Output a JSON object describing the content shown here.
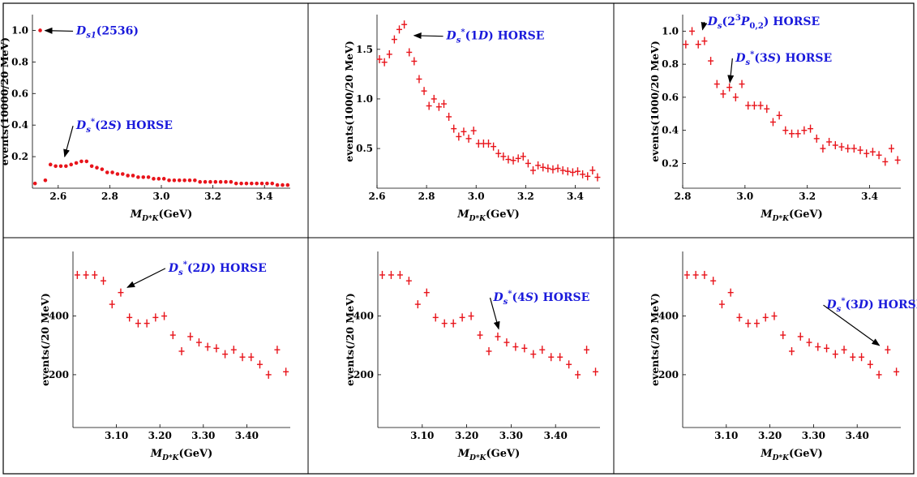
{
  "chart_data": [
    {
      "type": "scatter",
      "xlabel_main": "M",
      "xlabel_sub": "D*K",
      "xlabel_unit": "(GeV)",
      "ylabel": "events(10000/20 MeV)",
      "xlim": [
        2.5,
        3.5
      ],
      "ylim": [
        0,
        1.1
      ],
      "x_ticks": [
        "2.6",
        "2.8",
        "3.0",
        "3.2",
        "3.4"
      ],
      "y_ticks": [
        "0.2",
        "0.4",
        "0.6",
        "0.8",
        "1.0"
      ],
      "marker": "dot",
      "color": "#e8141b",
      "x": [
        2.51,
        2.53,
        2.55,
        2.57,
        2.59,
        2.61,
        2.63,
        2.65,
        2.67,
        2.69,
        2.71,
        2.73,
        2.75,
        2.77,
        2.79,
        2.81,
        2.83,
        2.85,
        2.87,
        2.89,
        2.91,
        2.93,
        2.95,
        2.97,
        2.99,
        3.01,
        3.03,
        3.05,
        3.07,
        3.09,
        3.11,
        3.13,
        3.15,
        3.17,
        3.19,
        3.21,
        3.23,
        3.25,
        3.27,
        3.29,
        3.31,
        3.33,
        3.35,
        3.37,
        3.39,
        3.41,
        3.43,
        3.45,
        3.47,
        3.49
      ],
      "y": [
        0.03,
        1.0,
        0.05,
        0.15,
        0.14,
        0.14,
        0.14,
        0.15,
        0.16,
        0.17,
        0.17,
        0.14,
        0.13,
        0.12,
        0.1,
        0.1,
        0.09,
        0.09,
        0.08,
        0.08,
        0.07,
        0.07,
        0.07,
        0.06,
        0.06,
        0.06,
        0.05,
        0.05,
        0.05,
        0.05,
        0.05,
        0.05,
        0.04,
        0.04,
        0.04,
        0.04,
        0.04,
        0.04,
        0.04,
        0.03,
        0.03,
        0.03,
        0.03,
        0.03,
        0.03,
        0.03,
        0.03,
        0.02,
        0.02,
        0.02
      ],
      "annotations": [
        {
          "parts": [
            {
              "t": "D",
              "i": true
            },
            {
              "t": "s1",
              "sub": true,
              "i": true
            },
            {
              "t": "(2536)"
            }
          ],
          "point": [
            2.53,
            1.0
          ],
          "text_at": [
            2.67,
            1.0
          ]
        },
        {
          "parts": [
            {
              "t": "D",
              "i": true
            },
            {
              "t": "s",
              "sub": true,
              "i": true
            },
            {
              "t": "*",
              "sup": true
            },
            {
              "t": "(2"
            },
            {
              "t": "S",
              "i": true
            },
            {
              "t": ") HORSE"
            }
          ],
          "point": [
            2.62,
            0.17
          ],
          "text_at": [
            2.67,
            0.4
          ]
        }
      ]
    },
    {
      "type": "scatter",
      "xlabel_main": "M",
      "xlabel_sub": "D*K",
      "xlabel_unit": "(GeV)",
      "ylabel": "events(1000/20 MeV)",
      "xlim": [
        2.6,
        3.5
      ],
      "ylim": [
        0.1,
        1.85
      ],
      "x_ticks": [
        "2.6",
        "2.8",
        "3.0",
        "3.2",
        "3.4"
      ],
      "y_ticks": [
        "0.5",
        "1.0",
        "1.5"
      ],
      "marker": "cross",
      "color": "#e8141b",
      "x": [
        2.61,
        2.63,
        2.65,
        2.67,
        2.69,
        2.71,
        2.73,
        2.75,
        2.77,
        2.79,
        2.81,
        2.83,
        2.85,
        2.87,
        2.89,
        2.91,
        2.93,
        2.95,
        2.97,
        2.99,
        3.01,
        3.03,
        3.05,
        3.07,
        3.09,
        3.11,
        3.13,
        3.15,
        3.17,
        3.19,
        3.21,
        3.23,
        3.25,
        3.27,
        3.29,
        3.31,
        3.33,
        3.35,
        3.37,
        3.39,
        3.41,
        3.43,
        3.45,
        3.47,
        3.49
      ],
      "y": [
        1.4,
        1.37,
        1.45,
        1.6,
        1.7,
        1.75,
        1.47,
        1.38,
        1.2,
        1.08,
        0.93,
        1.0,
        0.92,
        0.95,
        0.82,
        0.7,
        0.62,
        0.67,
        0.6,
        0.68,
        0.55,
        0.55,
        0.55,
        0.52,
        0.45,
        0.42,
        0.39,
        0.38,
        0.4,
        0.42,
        0.35,
        0.28,
        0.33,
        0.31,
        0.3,
        0.29,
        0.3,
        0.28,
        0.27,
        0.26,
        0.27,
        0.24,
        0.22,
        0.28,
        0.21
      ],
      "annotations": [
        {
          "parts": [
            {
              "t": "D",
              "i": true
            },
            {
              "t": "s",
              "sub": true,
              "i": true
            },
            {
              "t": "*",
              "sup": true
            },
            {
              "t": "(1"
            },
            {
              "t": "D",
              "i": true
            },
            {
              "t": ") HORSE"
            }
          ],
          "point": [
            2.73,
            1.64
          ],
          "text_at": [
            2.88,
            1.64
          ]
        }
      ]
    },
    {
      "type": "scatter",
      "xlabel_main": "M",
      "xlabel_sub": "D*K",
      "xlabel_unit": "(GeV)",
      "ylabel": "events(1000/20 MeV)",
      "xlim": [
        2.8,
        3.5
      ],
      "ylim": [
        0.05,
        1.1
      ],
      "x_ticks": [
        "2.8",
        "3.0",
        "3.2",
        "3.4"
      ],
      "y_ticks": [
        "0.2",
        "0.4",
        "0.6",
        "0.8",
        "1.0"
      ],
      "marker": "cross",
      "color": "#e8141b",
      "x": [
        2.81,
        2.83,
        2.85,
        2.87,
        2.89,
        2.91,
        2.93,
        2.95,
        2.97,
        2.99,
        3.01,
        3.03,
        3.05,
        3.07,
        3.09,
        3.11,
        3.13,
        3.15,
        3.17,
        3.19,
        3.21,
        3.23,
        3.25,
        3.27,
        3.29,
        3.31,
        3.33,
        3.35,
        3.37,
        3.39,
        3.41,
        3.43,
        3.45,
        3.47,
        3.49
      ],
      "y": [
        0.92,
        1.0,
        0.92,
        0.94,
        0.82,
        0.68,
        0.62,
        0.66,
        0.6,
        0.68,
        0.55,
        0.55,
        0.55,
        0.53,
        0.45,
        0.49,
        0.4,
        0.38,
        0.38,
        0.4,
        0.41,
        0.35,
        0.29,
        0.33,
        0.31,
        0.3,
        0.29,
        0.29,
        0.28,
        0.26,
        0.27,
        0.25,
        0.21,
        0.29,
        0.22
      ],
      "annotations": [
        {
          "parts": [
            {
              "t": "D",
              "i": true
            },
            {
              "t": "s",
              "sub": true,
              "i": true
            },
            {
              "t": "(2"
            },
            {
              "t": "3",
              "sup": true
            },
            {
              "t": "P",
              "i": true
            },
            {
              "t": "0,2",
              "sub": true
            },
            {
              "t": ") HORSE"
            }
          ],
          "point": [
            2.86,
            0.98
          ],
          "text_at": [
            2.88,
            1.06
          ]
        },
        {
          "parts": [
            {
              "t": "D",
              "i": true
            },
            {
              "t": "s",
              "sub": true,
              "i": true
            },
            {
              "t": "*",
              "sup": true
            },
            {
              "t": "(3"
            },
            {
              "t": "S",
              "i": true
            },
            {
              "t": ") HORSE"
            }
          ],
          "point": [
            2.95,
            0.66
          ],
          "text_at": [
            2.97,
            0.84
          ]
        }
      ]
    },
    {
      "type": "scatter",
      "xlabel_main": "M",
      "xlabel_sub": "D*K",
      "xlabel_unit": "(GeV)",
      "ylabel": "events(/20 MeV)",
      "xlim": [
        3.0,
        3.5
      ],
      "ylim": [
        20,
        620
      ],
      "x_ticks": [
        "3.10",
        "3.20",
        "3.30",
        "3.40"
      ],
      "y_ticks": [
        "200",
        "400"
      ],
      "marker": "cross",
      "color": "#e8141b",
      "x": [
        3.01,
        3.03,
        3.05,
        3.07,
        3.09,
        3.11,
        3.13,
        3.15,
        3.17,
        3.19,
        3.21,
        3.23,
        3.25,
        3.27,
        3.29,
        3.31,
        3.33,
        3.35,
        3.37,
        3.39,
        3.41,
        3.43,
        3.45,
        3.47,
        3.49
      ],
      "y": [
        540,
        540,
        540,
        520,
        440,
        480,
        395,
        375,
        375,
        395,
        400,
        335,
        280,
        330,
        310,
        295,
        290,
        270,
        285,
        260,
        260,
        235,
        200,
        285,
        210
      ],
      "annotations": [
        {
          "parts": [
            {
              "t": "D",
              "i": true
            },
            {
              "t": "s",
              "sub": true,
              "i": true
            },
            {
              "t": "*",
              "sup": true
            },
            {
              "t": "(2"
            },
            {
              "t": "D",
              "i": true
            },
            {
              "t": ") HORSE"
            }
          ],
          "point": [
            3.115,
            490
          ],
          "text_at": [
            3.22,
            565
          ]
        }
      ]
    },
    {
      "type": "scatter",
      "xlabel_main": "M",
      "xlabel_sub": "D*K",
      "xlabel_unit": "(GeV)",
      "ylabel": "events(/20 MeV)",
      "xlim": [
        3.0,
        3.5
      ],
      "ylim": [
        20,
        620
      ],
      "x_ticks": [
        "3.10",
        "3.20",
        "3.30",
        "3.40"
      ],
      "y_ticks": [
        "200",
        "400"
      ],
      "marker": "cross",
      "color": "#e8141b",
      "x": [
        3.01,
        3.03,
        3.05,
        3.07,
        3.09,
        3.11,
        3.13,
        3.15,
        3.17,
        3.19,
        3.21,
        3.23,
        3.25,
        3.27,
        3.29,
        3.31,
        3.33,
        3.35,
        3.37,
        3.39,
        3.41,
        3.43,
        3.45,
        3.47,
        3.49
      ],
      "y": [
        540,
        540,
        540,
        520,
        440,
        480,
        395,
        375,
        375,
        395,
        400,
        335,
        280,
        330,
        310,
        295,
        290,
        270,
        285,
        260,
        260,
        235,
        200,
        285,
        210
      ],
      "annotations": [
        {
          "parts": [
            {
              "t": "D",
              "i": true
            },
            {
              "t": "s",
              "sub": true,
              "i": true
            },
            {
              "t": "*",
              "sup": true
            },
            {
              "t": "(4"
            },
            {
              "t": "S",
              "i": true
            },
            {
              "t": ") HORSE"
            }
          ],
          "point": [
            3.275,
            340
          ],
          "text_at": [
            3.26,
            465
          ]
        }
      ]
    },
    {
      "type": "scatter",
      "xlabel_main": "M",
      "xlabel_sub": "D*K",
      "xlabel_unit": "(GeV)",
      "ylabel": "events(/20 MeV)",
      "xlim": [
        3.0,
        3.5
      ],
      "ylim": [
        20,
        620
      ],
      "x_ticks": [
        "3.10",
        "3.20",
        "3.30",
        "3.40"
      ],
      "y_ticks": [
        "200",
        "400"
      ],
      "marker": "cross",
      "color": "#e8141b",
      "x": [
        3.01,
        3.03,
        3.05,
        3.07,
        3.09,
        3.11,
        3.13,
        3.15,
        3.17,
        3.19,
        3.21,
        3.23,
        3.25,
        3.27,
        3.29,
        3.31,
        3.33,
        3.35,
        3.37,
        3.39,
        3.41,
        3.43,
        3.45,
        3.47,
        3.49
      ],
      "y": [
        540,
        540,
        540,
        520,
        440,
        480,
        395,
        375,
        375,
        395,
        400,
        335,
        280,
        330,
        310,
        295,
        290,
        270,
        285,
        260,
        260,
        235,
        200,
        285,
        210
      ],
      "annotations": [
        {
          "parts": [
            {
              "t": "D",
              "i": true
            },
            {
              "t": "s",
              "sub": true,
              "i": true
            },
            {
              "t": "*",
              "sup": true
            },
            {
              "t": "(3"
            },
            {
              "t": "D",
              "i": true
            },
            {
              "t": ") HORSE"
            }
          ],
          "point": [
            3.46,
            290
          ],
          "text_at": [
            3.33,
            440
          ]
        }
      ]
    }
  ]
}
